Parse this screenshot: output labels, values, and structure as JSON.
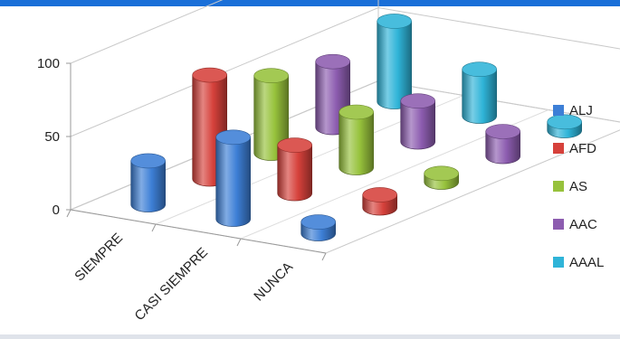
{
  "chart_data": {
    "type": "bar",
    "subtype": "3d-cylinder",
    "categories": [
      "SIEMPRE",
      "CASI SIEMPRE",
      "NUNCA"
    ],
    "series": [
      {
        "name": "ALJ",
        "color": "#3d7fd6",
        "values": [
          30,
          56,
          8
        ]
      },
      {
        "name": "AFD",
        "color": "#d6413b",
        "values": [
          71,
          33,
          9
        ]
      },
      {
        "name": "AS",
        "color": "#97c23c",
        "values": [
          53,
          38,
          6
        ]
      },
      {
        "name": "AAC",
        "color": "#8d5db0",
        "values": [
          45,
          28,
          17
        ]
      },
      {
        "name": "AAAL",
        "color": "#2fb4d8",
        "values": [
          55,
          32,
          6
        ]
      }
    ],
    "yticks": [
      0,
      50,
      100
    ],
    "ylim": [
      0,
      100
    ],
    "legend": "right",
    "grid": true
  },
  "colors": {
    "top_bar": "#1a6fd8",
    "grid": "#c9c9c9"
  }
}
